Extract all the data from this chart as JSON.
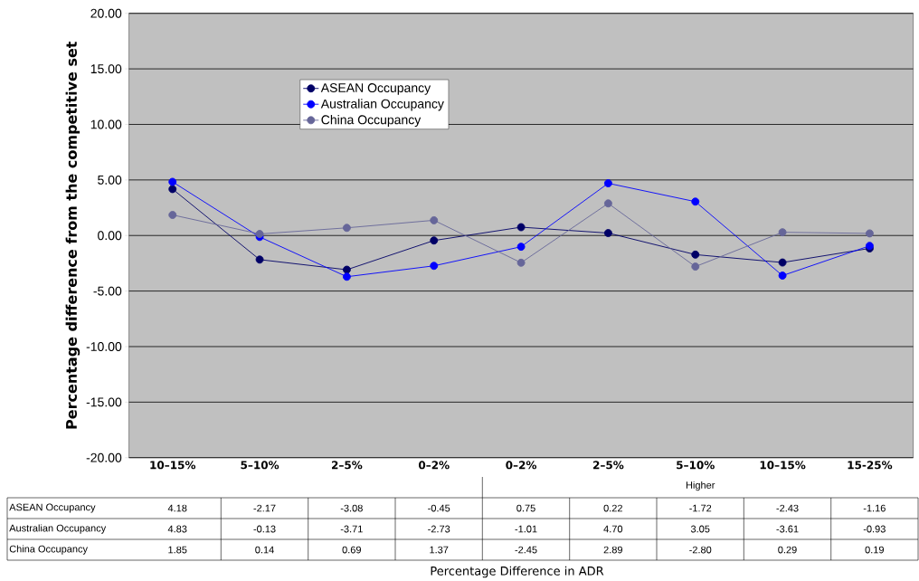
{
  "chart_data": {
    "type": "line",
    "ylabel": "Percentage difference from the competitive set",
    "categories": [
      "10–15%",
      "5–10%",
      "2–5%",
      "0–2%",
      "0–2%",
      "2–5%",
      "5–10%",
      "10–15%",
      "15-25%"
    ],
    "series": [
      {
        "name": "ASEAN Occupancy",
        "color": "#000066",
        "values": [
          4.18,
          -2.17,
          -3.08,
          -0.45,
          0.75,
          0.22,
          -1.72,
          -2.43,
          -1.16
        ],
        "value_labels": [
          "4.18",
          "-2.17",
          "-3.08",
          "-0.45",
          "0.75",
          "0.22",
          "-1.72",
          "-2.43",
          "-1.16"
        ]
      },
      {
        "name": "Australian Occupancy",
        "color": "#0000ff",
        "values": [
          4.83,
          -0.13,
          -3.71,
          -2.73,
          -1.01,
          4.7,
          3.05,
          -3.61,
          -0.93
        ],
        "value_labels": [
          "4.83",
          "-0.13",
          "-3.71",
          "-2.73",
          "-1.01",
          "4.70",
          "3.05",
          "-3.61",
          "-0.93"
        ]
      },
      {
        "name": "China Occupancy",
        "color": "#666699",
        "values": [
          1.85,
          0.14,
          0.69,
          1.37,
          -2.45,
          2.89,
          -2.8,
          0.29,
          0.19
        ],
        "value_labels": [
          "1.85",
          "0.14",
          "0.69",
          "1.37",
          "-2.45",
          "2.89",
          "-2.80",
          "0.29",
          "0.19"
        ]
      }
    ],
    "ylim": [
      -20,
      20
    ],
    "yticks": [
      {
        "value": -20,
        "label": "-20.00"
      },
      {
        "value": -15,
        "label": "-15.00"
      },
      {
        "value": -10,
        "label": "-10.00"
      },
      {
        "value": -5,
        "label": "-5.00"
      },
      {
        "value": 0,
        "label": "0.00"
      },
      {
        "value": 5,
        "label": "5.00"
      },
      {
        "value": 10,
        "label": "10.00"
      },
      {
        "value": 15,
        "label": "15.00"
      },
      {
        "value": 20,
        "label": "20.00"
      }
    ],
    "grid": "y",
    "legend": "top left",
    "marker": "circle",
    "annotations": [
      "Higher",
      "Percentage Difference in ADR"
    ]
  }
}
